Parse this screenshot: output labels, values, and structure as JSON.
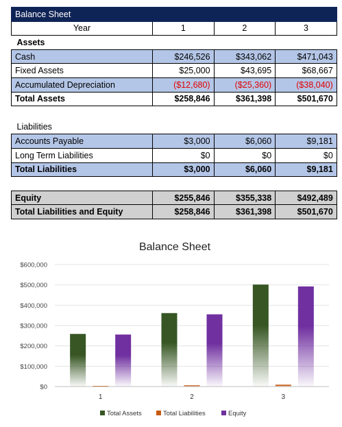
{
  "balance_sheet": {
    "title": "Balance Sheet",
    "year_label": "Year",
    "years": [
      "1",
      "2",
      "3"
    ],
    "assets_heading": "Assets",
    "assets_rows": [
      {
        "label": "Cash",
        "values": [
          "$246,526",
          "$343,062",
          "$471,043"
        ]
      },
      {
        "label": "Fixed Assets",
        "values": [
          "$25,000",
          "$43,695",
          "$68,667"
        ]
      },
      {
        "label": "Accumulated Depreciation",
        "values": [
          "($12,680)",
          "($25,360)",
          "($38,040)"
        ]
      }
    ],
    "total_assets": {
      "label": "Total Assets",
      "values": [
        "$258,846",
        "$361,398",
        "$501,670"
      ]
    },
    "liabilities_heading": "Liabilities",
    "liabilities_rows": [
      {
        "label": "Accounts Payable",
        "values": [
          "$3,000",
          "$6,060",
          "$9,181"
        ]
      },
      {
        "label": "Long Term Liabilities",
        "values": [
          "$0",
          "$0",
          "$0"
        ]
      }
    ],
    "total_liabilities": {
      "label": "Total Liabilities",
      "values": [
        "$3,000",
        "$6,060",
        "$9,181"
      ]
    },
    "equity": {
      "label": "Equity",
      "values": [
        "$255,846",
        "$355,338",
        "$492,489"
      ]
    },
    "total_liabilities_equity": {
      "label": "Total Liabilities and Equity",
      "values": [
        "$258,846",
        "$361,398",
        "$501,670"
      ]
    }
  },
  "colors": {
    "header_navy": "#0f2456",
    "row_blue": "#b4c6e7",
    "row_gray": "#d0d0d0",
    "negative_red": "#e00000",
    "total_assets_green": "#375623",
    "total_liabilities_orange": "#c55a11",
    "equity_purple": "#7030a0"
  },
  "chart_data": {
    "type": "bar",
    "title": "Balance Sheet",
    "categories": [
      "1",
      "2",
      "3"
    ],
    "series": [
      {
        "name": "Total Assets",
        "values": [
          258846,
          361398,
          501670
        ],
        "color": "#375623"
      },
      {
        "name": "Total Liabilities",
        "values": [
          3000,
          6060,
          9181
        ],
        "color": "#c55a11"
      },
      {
        "name": "Equity",
        "values": [
          255846,
          355338,
          492489
        ],
        "color": "#7030a0"
      }
    ],
    "ylim": [
      0,
      600000
    ],
    "yticks": [
      0,
      100000,
      200000,
      300000,
      400000,
      500000,
      600000
    ],
    "ytick_labels": [
      "$0",
      "$100,000",
      "$200,000",
      "$300,000",
      "$400,000",
      "$500,000",
      "$600,000"
    ],
    "grid": true,
    "legend_position": "bottom",
    "bar_fill": "gradient fading to white toward the baseline"
  }
}
